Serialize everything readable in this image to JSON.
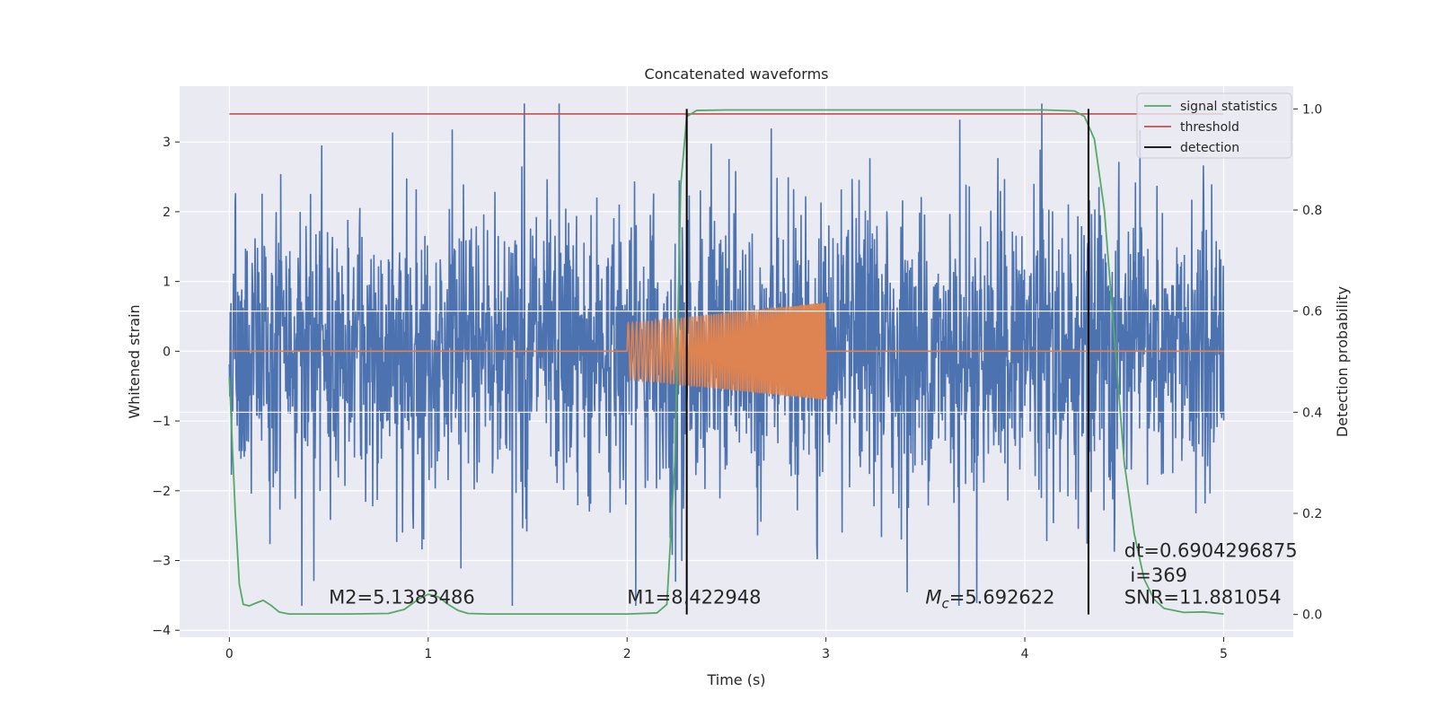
{
  "chart_data": {
    "type": "line",
    "title": "Concatenated waveforms",
    "xlabel": "Time (s)",
    "ylabel_left": "Whitened strain",
    "ylabel_right": "Detection probability",
    "xlim": [
      -0.25,
      5.35
    ],
    "ylim_left": [
      -4.1,
      3.8
    ],
    "ylim_right": [
      -0.045,
      1.045
    ],
    "x_ticks": [
      0,
      1,
      2,
      3,
      4,
      5
    ],
    "y_left_ticks": [
      -4,
      -3,
      -2,
      -1,
      0,
      1,
      2,
      3
    ],
    "y_right_ticks": [
      0.0,
      0.2,
      0.4,
      0.6,
      0.8,
      1.0
    ],
    "grid": true,
    "legend_position": "top-right",
    "legend": [
      {
        "label": "signal statistics",
        "color": "#55a868"
      },
      {
        "label": "threshold",
        "color": "#c44e52"
      },
      {
        "label": "detection",
        "color": "#000000"
      }
    ],
    "series": [
      {
        "axis": "left",
        "color": "#4c72b0",
        "kind": "noise",
        "x_range": [
          0,
          5
        ],
        "amplitude_typical": 2.0,
        "min": -3.65,
        "max": 3.55
      },
      {
        "axis": "left",
        "color": "#dd8452",
        "kind": "chirp",
        "x_range": [
          0,
          5
        ],
        "chirp_start": 2.0,
        "chirp_end": 3.0,
        "amplitude_start": 0.4,
        "amplitude_end": 0.7
      },
      {
        "axis": "right",
        "name": "signal statistics",
        "color": "#55a868",
        "x": [
          0,
          0.01,
          0.03,
          0.05,
          0.07,
          0.1,
          0.13,
          0.17,
          0.21,
          0.25,
          0.3,
          0.4,
          0.6,
          0.8,
          0.88,
          0.95,
          1.0,
          1.05,
          1.1,
          1.15,
          1.2,
          1.3,
          1.6,
          2.0,
          2.15,
          2.2,
          2.24,
          2.27,
          2.3,
          2.35,
          2.5,
          3.0,
          3.5,
          3.9,
          4.1,
          4.25,
          4.3,
          4.35,
          4.4,
          4.45,
          4.5,
          4.55,
          4.6,
          4.65,
          4.7,
          4.8,
          4.9,
          5.0
        ],
        "y": [
          0.47,
          0.38,
          0.2,
          0.06,
          0.02,
          0.017,
          0.022,
          0.028,
          0.018,
          0.005,
          0.001,
          0.001,
          0.001,
          0.002,
          0.01,
          0.03,
          0.04,
          0.035,
          0.02,
          0.008,
          0.002,
          0.001,
          0.001,
          0.001,
          0.003,
          0.02,
          0.3,
          0.85,
          0.985,
          0.997,
          0.998,
          0.998,
          0.998,
          0.998,
          0.998,
          0.996,
          0.985,
          0.94,
          0.8,
          0.55,
          0.3,
          0.16,
          0.07,
          0.03,
          0.012,
          0.004,
          0.005,
          0.001
        ]
      },
      {
        "axis": "right",
        "name": "threshold",
        "color": "#c44e52",
        "x": [
          0,
          5
        ],
        "y": [
          0.99,
          0.99
        ]
      }
    ],
    "detections": [
      2.3,
      4.32
    ],
    "annotations": [
      {
        "text": "M2=5.1383486",
        "x": 0.5,
        "y": -3.62
      },
      {
        "text": "M1=8.422948",
        "x": 2.0,
        "y": -3.62
      },
      {
        "text": "=5.692622",
        "math_prefix": "M",
        "math_sub": "c",
        "x": 3.5,
        "y": -3.62
      },
      {
        "text": "dt=0.6904296875",
        "x": 4.5,
        "y": -2.95
      },
      {
        "text": "i=369",
        "x": 4.53,
        "y": -3.3
      },
      {
        "text": "SNR=11.881054",
        "x": 4.5,
        "y": -3.62
      }
    ]
  }
}
